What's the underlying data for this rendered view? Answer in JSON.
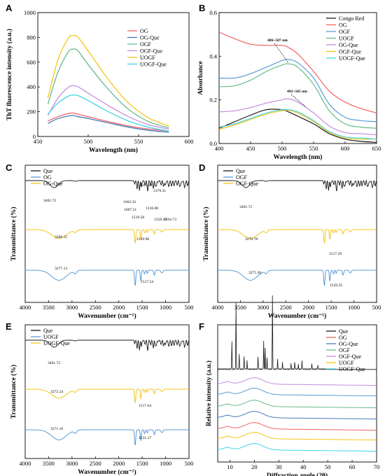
{
  "colors": {
    "black": "#1a1a1a",
    "red": "#f06464",
    "blue": "#5b9bd5",
    "green": "#66bb8b",
    "purple": "#c58ce0",
    "yellow": "#f5c518",
    "cyan": "#3fd6e6",
    "darkblue": "#4a78b8"
  },
  "chart_data": [
    {
      "panel": "A",
      "type": "line",
      "xlabel": "Wavelength (nm)",
      "ylabel": "ThT fluorescence intensity (a.u.)",
      "xlim": [
        450,
        600
      ],
      "ylim": [
        0,
        1000
      ],
      "xticks": [
        450,
        500,
        550,
        600
      ],
      "yticks": [
        0,
        200,
        400,
        600,
        800,
        1000
      ],
      "x": [
        460,
        470,
        480,
        485,
        490,
        500,
        520,
        540,
        560,
        580
      ],
      "legend_position": "top-right",
      "series": [
        {
          "name": "OG",
          "color": "red",
          "values": [
            125,
            160,
            185,
            190,
            180,
            160,
            120,
            85,
            60,
            45
          ]
        },
        {
          "name": "OG-Que",
          "color": "darkblue",
          "values": [
            105,
            145,
            165,
            170,
            160,
            145,
            110,
            75,
            50,
            35
          ]
        },
        {
          "name": "OGF",
          "color": "green",
          "values": [
            260,
            520,
            680,
            705,
            690,
            580,
            380,
            220,
            120,
            70
          ]
        },
        {
          "name": "OGF-Que",
          "color": "purple",
          "values": [
            170,
            310,
            395,
            410,
            400,
            350,
            250,
            160,
            95,
            60
          ]
        },
        {
          "name": "UOGF",
          "color": "yellow",
          "values": [
            310,
            620,
            790,
            815,
            800,
            690,
            460,
            270,
            150,
            85
          ]
        },
        {
          "name": "UOGF-Que",
          "color": "cyan",
          "values": [
            180,
            270,
            325,
            335,
            330,
            290,
            200,
            125,
            75,
            45
          ]
        }
      ]
    },
    {
      "panel": "B",
      "type": "line",
      "xlabel": "Wavelength (nm)",
      "ylabel": "Absorbance",
      "xlim": [
        400,
        650
      ],
      "ylim": [
        0,
        0.6
      ],
      "xticks": [
        400,
        450,
        500,
        550,
        600,
        650
      ],
      "yticks": [
        0.0,
        0.2,
        0.4,
        0.6
      ],
      "x": [
        400,
        425,
        450,
        475,
        500,
        510,
        525,
        550,
        575,
        600,
        625,
        650
      ],
      "legend_position": "top-right",
      "annotations": [
        "486~507 nm",
        "492~505 nm"
      ],
      "series": [
        {
          "name": "Congo Red",
          "color": "black",
          "values": [
            0.07,
            0.1,
            0.13,
            0.155,
            0.155,
            0.145,
            0.125,
            0.09,
            0.045,
            0.02,
            0.01,
            0.005
          ]
        },
        {
          "name": "OG",
          "color": "red",
          "values": [
            0.51,
            0.48,
            0.455,
            0.45,
            0.45,
            0.44,
            0.41,
            0.33,
            0.24,
            0.19,
            0.16,
            0.14
          ]
        },
        {
          "name": "OGF",
          "color": "blue",
          "values": [
            0.3,
            0.3,
            0.32,
            0.35,
            0.38,
            0.385,
            0.37,
            0.3,
            0.18,
            0.12,
            0.105,
            0.1
          ]
        },
        {
          "name": "UOGF",
          "color": "green",
          "values": [
            0.26,
            0.265,
            0.29,
            0.33,
            0.36,
            0.365,
            0.35,
            0.27,
            0.15,
            0.09,
            0.075,
            0.07
          ]
        },
        {
          "name": "OG-Que",
          "color": "purple",
          "values": [
            0.145,
            0.15,
            0.165,
            0.185,
            0.2,
            0.205,
            0.19,
            0.14,
            0.08,
            0.05,
            0.045,
            0.04
          ]
        },
        {
          "name": "OGF-Que",
          "color": "yellow",
          "values": [
            0.065,
            0.085,
            0.11,
            0.135,
            0.15,
            0.152,
            0.14,
            0.1,
            0.05,
            0.025,
            0.02,
            0.02
          ]
        },
        {
          "name": "UOGF-Que",
          "color": "cyan",
          "values": [
            0.075,
            0.09,
            0.115,
            0.14,
            0.155,
            0.155,
            0.145,
            0.105,
            0.055,
            0.03,
            0.025,
            0.02
          ]
        }
      ]
    },
    {
      "panel": "C",
      "type": "line",
      "xlabel": "Wavenumber (cm⁻¹)",
      "ylabel": "Transmittance (%)",
      "xlim": [
        4000,
        500
      ],
      "xticks": [
        4000,
        3500,
        3000,
        2500,
        2000,
        1500,
        1000,
        500
      ],
      "legend_position": "top-left",
      "legend": [
        {
          "name": "Que",
          "color": "black"
        },
        {
          "name": "OG",
          "color": "blue"
        },
        {
          "name": "OG-Que",
          "color": "yellow"
        }
      ],
      "annotations": [
        "3401.72",
        "1662.32",
        "1560.60",
        "1379.31",
        "1607.51",
        "1519.58",
        "1316.80",
        "1258.39",
        "1194.73",
        "3280.15",
        "1529.90",
        "3277.13",
        "1517.54"
      ]
    },
    {
      "panel": "D",
      "type": "line",
      "xlabel": "Wavenumber (cm⁻¹)",
      "ylabel": "Transmittance (%)",
      "xlim": [
        4000,
        500
      ],
      "xticks": [
        4000,
        3500,
        3000,
        2500,
        2000,
        1500,
        1000,
        500
      ],
      "legend_position": "top-left",
      "legend": [
        {
          "name": "Que",
          "color": "black"
        },
        {
          "name": "OGF",
          "color": "blue"
        },
        {
          "name": "OGF-Que",
          "color": "yellow"
        }
      ],
      "annotations": [
        "3401.72",
        "3270.78",
        "1517.29",
        "3275.30",
        "1529.35"
      ]
    },
    {
      "panel": "E",
      "type": "line",
      "xlabel": "Wavenumber (cm⁻¹)",
      "ylabel": "Transmittance (%)",
      "xlim": [
        4000,
        500
      ],
      "xticks": [
        4000,
        3500,
        3000,
        2500,
        2000,
        1500,
        1000,
        500
      ],
      "legend_position": "top-left",
      "legend": [
        {
          "name": "Que",
          "color": "black"
        },
        {
          "name": "UOGF",
          "color": "blue"
        },
        {
          "name": "UOGF-Que",
          "color": "yellow"
        }
      ],
      "annotations": [
        "3401.72",
        "3272.24",
        "1517.64",
        "3271.16",
        "1531.17"
      ]
    },
    {
      "panel": "F",
      "type": "line",
      "xlabel": "Diffraction angle (2θ)",
      "ylabel": "Relative intensity (a.u.)",
      "xlim": [
        5,
        70
      ],
      "xticks": [
        10,
        20,
        30,
        40,
        50,
        60,
        70
      ],
      "legend_position": "top-right",
      "legend": [
        {
          "name": "Que",
          "color": "black"
        },
        {
          "name": "OG",
          "color": "red"
        },
        {
          "name": "OG-Que",
          "color": "darkblue"
        },
        {
          "name": "OGF",
          "color": "green"
        },
        {
          "name": "OGF-Que",
          "color": "purple"
        },
        {
          "name": "UOGF",
          "color": "yellow"
        },
        {
          "name": "UOGF-Que",
          "color": "cyan"
        }
      ]
    }
  ]
}
